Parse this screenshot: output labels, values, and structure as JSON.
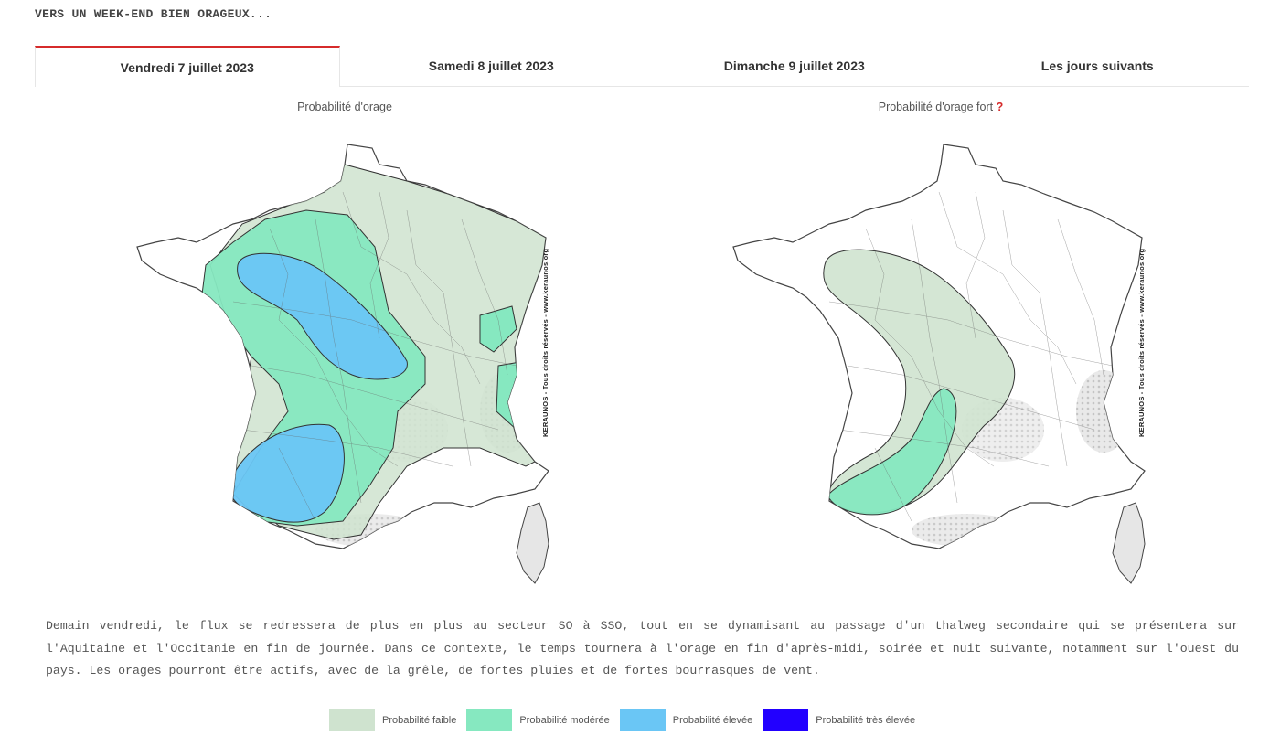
{
  "headline": "VERS UN WEEK-END BIEN ORAGEUX...",
  "tabs": [
    {
      "label": "Vendredi 7 juillet 2023",
      "active": true
    },
    {
      "label": "Samedi 8 juillet 2023",
      "active": false
    },
    {
      "label": "Dimanche 9 juillet 2023",
      "active": false
    },
    {
      "label": "Les jours suivants",
      "active": false
    }
  ],
  "maps": {
    "left_title": "Probabilité d'orage",
    "right_title": "Probabilité d'orage fort",
    "right_help": "?",
    "credit": "KERAUNOS - Tous droits réservés - www.keraunos.org"
  },
  "paragraph": "Demain vendredi, le flux se redressera de plus en plus au secteur SO à SSO, tout en se dynamisant au passage d'un thalweg secondaire qui se présentera sur l'Aquitaine et l'Occitanie en fin de journée. Dans ce contexte, le temps tournera à l'orage en fin d'après-midi, soirée et nuit suivante, notamment sur l'ouest du pays. Les orages pourront être actifs, avec de la grêle, de fortes pluies et de fortes bourrasques de vent.",
  "legend": [
    {
      "label": "Probabilité faible",
      "color": "#cfe3cf"
    },
    {
      "label": "Probabilité modérée",
      "color": "#86e8c0"
    },
    {
      "label": "Probabilité élevée",
      "color": "#6ac6f5"
    },
    {
      "label": "Probabilité très élevée",
      "color": "#2200ff"
    }
  ]
}
